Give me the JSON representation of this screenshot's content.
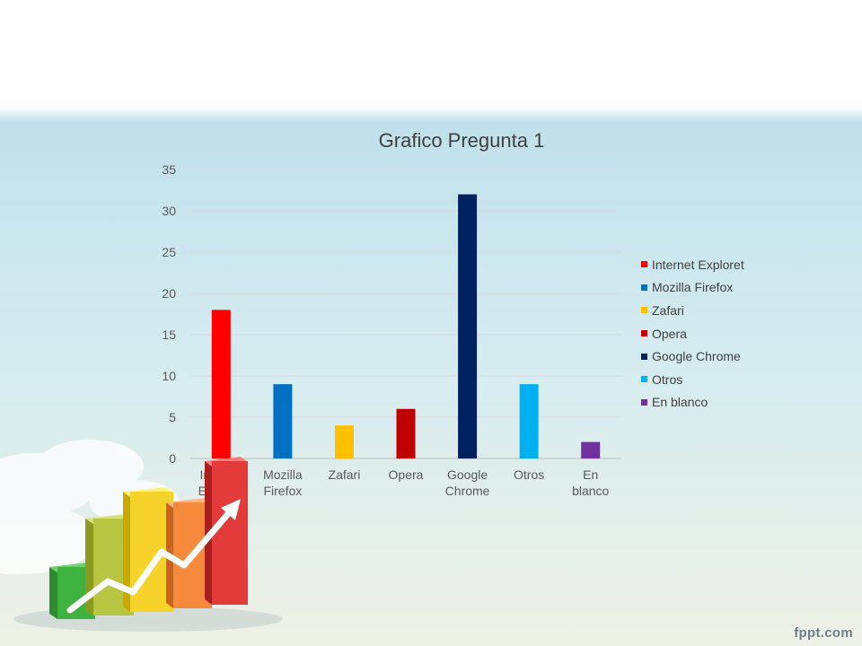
{
  "chart_data": {
    "type": "bar",
    "title": "Grafico Pregunta 1",
    "categories": [
      "Internet Exploret",
      "Mozilla Firefox",
      "Zafari",
      "Opera",
      "Google Chrome",
      "Otros",
      "En blanco"
    ],
    "category_labels": [
      [
        "Internet",
        "Exploret"
      ],
      [
        "Mozilla",
        "Firefox"
      ],
      [
        "Zafari"
      ],
      [
        "Opera"
      ],
      [
        "Google",
        "Chrome"
      ],
      [
        "Otros"
      ],
      [
        "En",
        "blanco"
      ]
    ],
    "values": [
      18,
      9,
      4,
      6,
      32,
      9,
      2
    ],
    "colors": [
      "#ff0000",
      "#0070c0",
      "#ffc000",
      "#c00000",
      "#002060",
      "#00b0f0",
      "#7030a0"
    ],
    "yticks": [
      0,
      5,
      10,
      15,
      20,
      25,
      30,
      35
    ],
    "ylim": [
      0,
      35
    ],
    "xlabel": "",
    "ylabel": "",
    "grid": true,
    "legend_position": "right",
    "legend": [
      "Internet Exploret",
      "Mozilla Firefox",
      "Zafari",
      "Opera",
      "Google Chrome",
      "Otros",
      "En blanco"
    ]
  },
  "watermark": "fppt.com",
  "decoration": {
    "icon": "rising-bar-chart-with-arrow-icon"
  }
}
